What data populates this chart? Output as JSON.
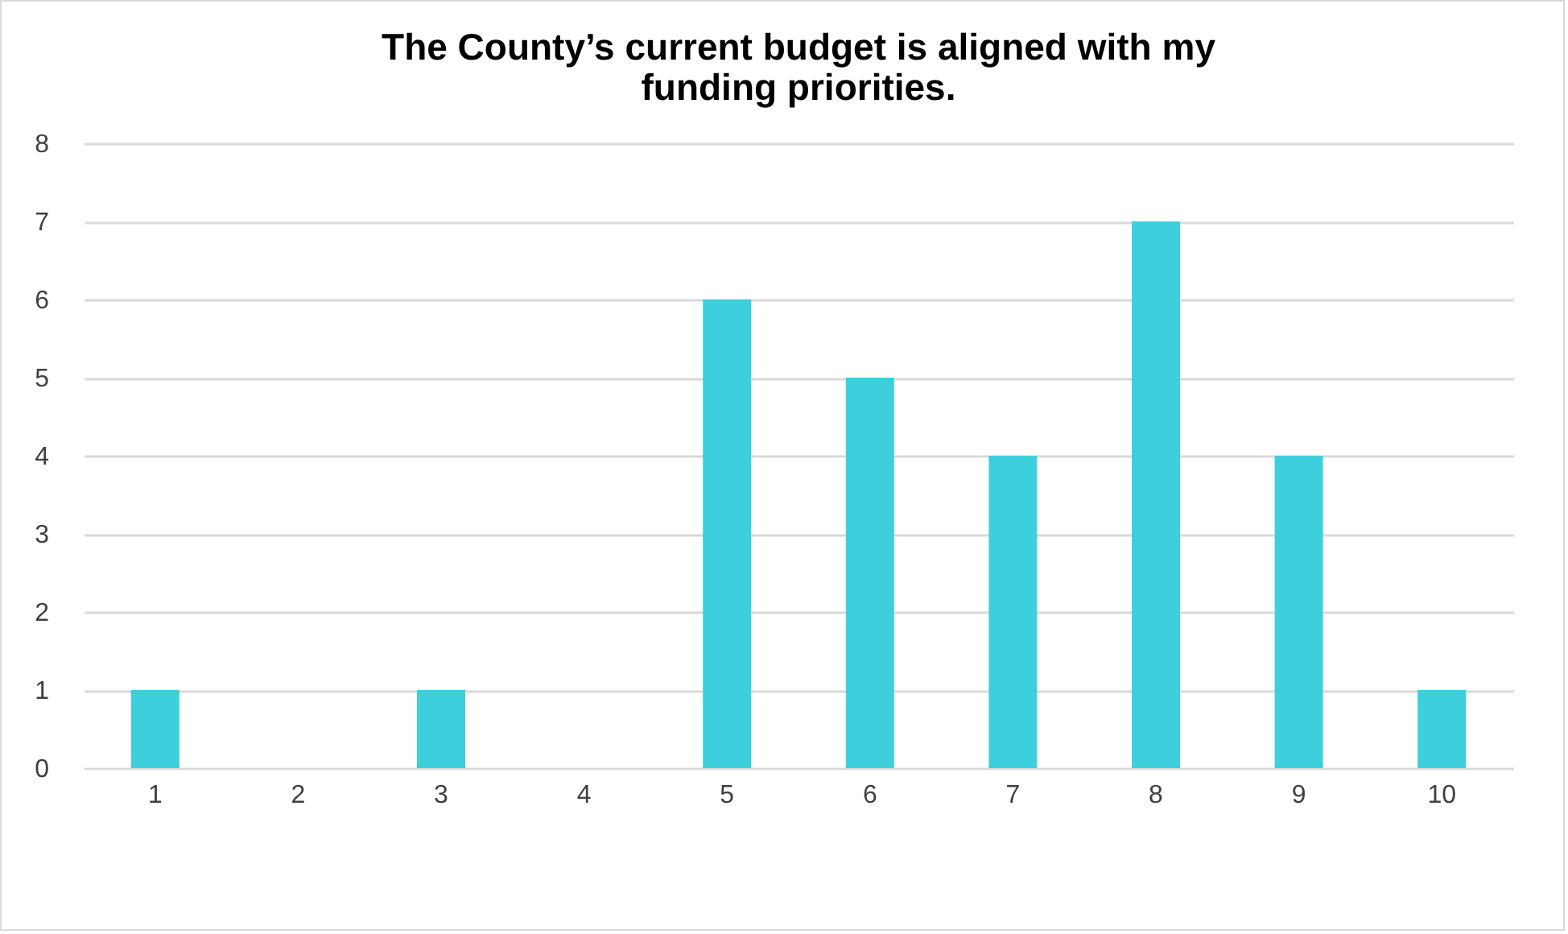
{
  "chart_data": {
    "type": "bar",
    "title": "The County’s current budget is aligned with my funding priorities.",
    "categories": [
      "1",
      "2",
      "3",
      "4",
      "5",
      "6",
      "7",
      "8",
      "9",
      "10"
    ],
    "values": [
      1,
      0,
      1,
      0,
      6,
      5,
      4,
      7,
      4,
      1
    ],
    "color": "#3dd0dc",
    "ylim": [
      0,
      8
    ],
    "yticks": [
      0,
      1,
      2,
      3,
      4,
      5,
      6,
      7,
      8
    ],
    "grid": "y"
  }
}
